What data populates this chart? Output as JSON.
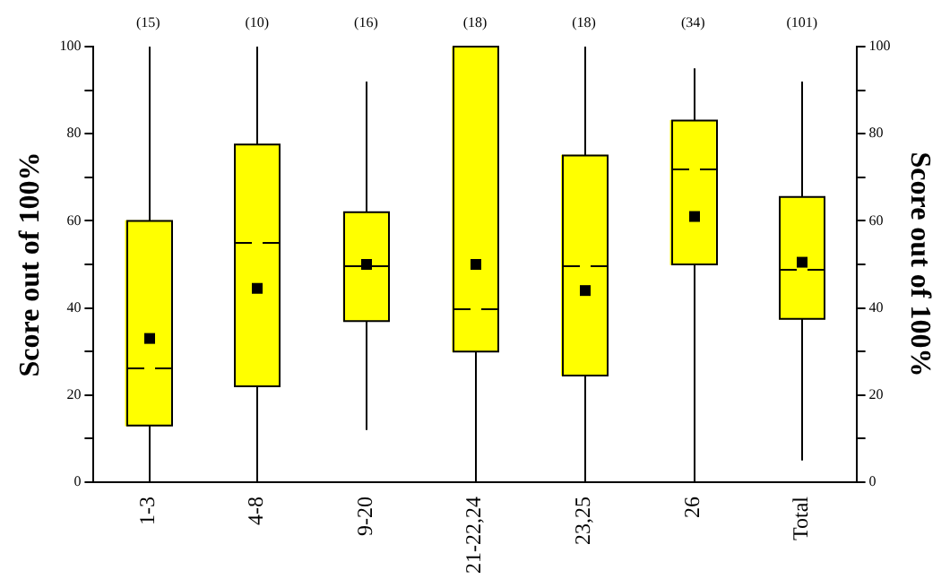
{
  "chart_data": {
    "type": "box",
    "categories": [
      "1-3",
      "4-8",
      "9-20",
      "21-22,24",
      "23,25",
      "26",
      "Total"
    ],
    "boxes": [
      {
        "low": 0,
        "q1": 13,
        "median": 26.5,
        "q3": 60,
        "high": 100,
        "mean": 33
      },
      {
        "low": 0,
        "q1": 22,
        "median": 55,
        "q3": 77.5,
        "high": 100,
        "mean": 44.5
      },
      {
        "low": 12,
        "q1": 37,
        "median": 50,
        "q3": 62,
        "high": 92,
        "mean": 50
      },
      {
        "low": 0,
        "q1": 30,
        "median": 40,
        "q3": 100,
        "high": 100,
        "mean": 50
      },
      {
        "low": 0,
        "q1": 24.5,
        "median": 50,
        "q3": 75,
        "high": 100,
        "mean": 44
      },
      {
        "low": 0,
        "q1": 50,
        "median": 72,
        "q3": 83,
        "high": 95,
        "mean": 61
      },
      {
        "low": 5,
        "q1": 37.5,
        "median": 49,
        "q3": 65.5,
        "high": 92,
        "mean": 50.5
      }
    ],
    "color": "#ffff00",
    "marker": "square",
    "grid": false,
    "legend": false,
    "ylabel": "Score out of 100%",
    "y2label": "Score out of 100%",
    "ylim": [
      0,
      100
    ],
    "yticks": [
      0,
      {
        "value": 10,
        "label": null
      },
      20,
      {
        "value": 30,
        "label": null
      },
      40,
      {
        "value": 50,
        "label": null
      },
      60,
      {
        "value": 70,
        "label": null
      },
      80,
      {
        "value": 90,
        "label": null
      },
      100
    ],
    "y2lim": [
      0,
      100
    ],
    "y2ticks": [
      0,
      {
        "value": 10,
        "label": null
      },
      20,
      {
        "value": 30,
        "label": null
      },
      40,
      {
        "value": 50,
        "label": null
      },
      60,
      {
        "value": 70,
        "label": null
      },
      80,
      {
        "value": 90,
        "label": null
      },
      100
    ],
    "annotations": [
      "(15)",
      "(10)",
      "(16)",
      "(18)",
      "(18)",
      "(34)",
      "(101)"
    ]
  }
}
